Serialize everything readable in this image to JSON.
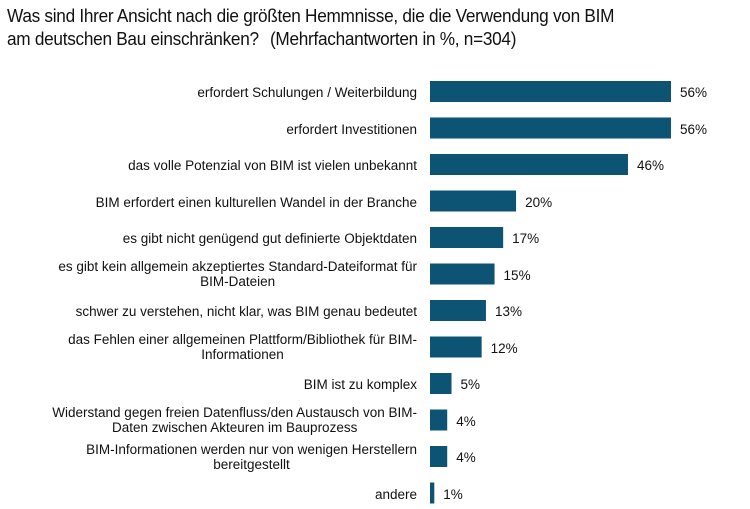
{
  "title": {
    "line1": "Was sind Ihrer Ansicht nach die größten Hemmnisse,  die die Verwendung  von BIM",
    "line2": "am deutschen Bau einschränken?",
    "note": "(Mehrfachantworten  in %, n=304)"
  },
  "chart_data": {
    "type": "bar",
    "orientation": "horizontal",
    "title": "Was sind Ihrer Ansicht nach die größten Hemmnisse, die die Verwendung von BIM am deutschen Bau einschränken? (Mehrfachantworten in %, n=304)",
    "xlabel": "",
    "ylabel": "",
    "unit": "%",
    "xlim": [
      0,
      56
    ],
    "grid": false,
    "legend": "none",
    "bar_color": "#0d5373",
    "categories": [
      [
        "erfordert Schulungen / Weiterbildung"
      ],
      [
        "erfordert Investitionen"
      ],
      [
        "das volle Potenzial von BIM ist vielen unbekannt"
      ],
      [
        "BIM erfordert einen kulturellen Wandel in der Branche"
      ],
      [
        "es gibt nicht genügend gut definierte Objektdaten"
      ],
      [
        "es gibt kein allgemein akzeptiertes Standard-Dateiformat für",
        "BIM-Dateien"
      ],
      [
        "schwer zu verstehen, nicht klar, was BIM genau bedeutet"
      ],
      [
        "das Fehlen einer allgemeinen Plattform/Bibliothek für BIM-",
        "Informationen"
      ],
      [
        "BIM ist zu komplex"
      ],
      [
        "Widerstand gegen freien Datenfluss/den Austausch von BIM-",
        "Daten zwischen Akteuren im Bauprozess"
      ],
      [
        "BIM-Informationen werden nur von wenigen Herstellern",
        "bereitgestellt"
      ],
      [
        "andere"
      ]
    ],
    "values": [
      56,
      56,
      46,
      20,
      17,
      15,
      13,
      12,
      5,
      4,
      4,
      1
    ],
    "value_labels": [
      "56%",
      "56%",
      "46%",
      "20%",
      "17%",
      "15%",
      "13%",
      "12%",
      "5%",
      "4%",
      "4%",
      "1%"
    ]
  }
}
